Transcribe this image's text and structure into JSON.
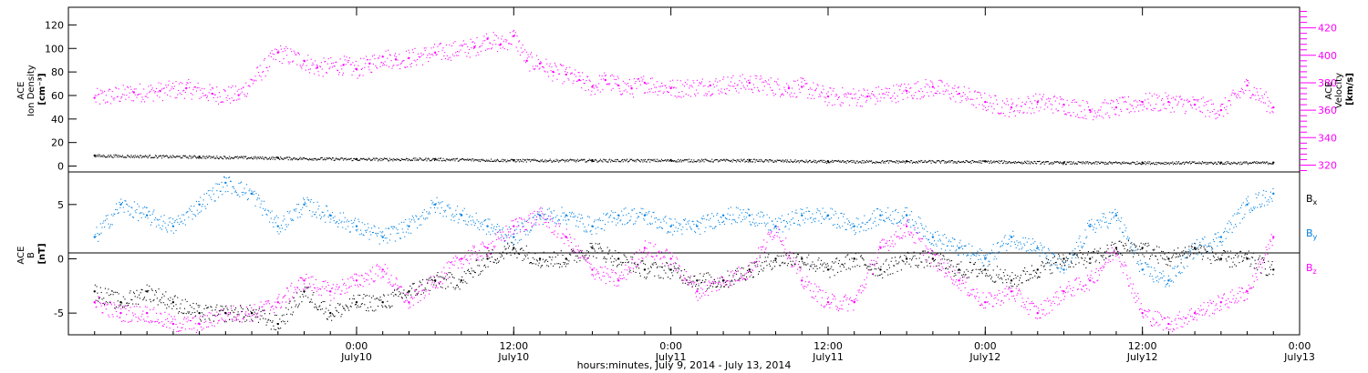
{
  "chart_data": [
    {
      "type": "scatter",
      "panel": "top",
      "left_axis": {
        "label_lines": [
          "ACE",
          "Ion Density",
          "[cm⁻³]"
        ],
        "ticks": [
          0,
          20,
          40,
          60,
          80,
          100,
          120
        ],
        "ylim": [
          -5,
          135
        ]
      },
      "right_axis": {
        "label_lines": [
          "ACE",
          "Velocity",
          "[km/s]"
        ],
        "ticks": [
          320,
          340,
          360,
          380,
          400,
          420
        ],
        "ylim": [
          315,
          435
        ],
        "color": "#ff00ff"
      },
      "series": [
        {
          "axis": "left",
          "color": "#000000",
          "x": [
            -20,
            -12,
            -6,
            0,
            6,
            12,
            18,
            24,
            30,
            36,
            42,
            48,
            54,
            60,
            66,
            70
          ],
          "y": [
            9,
            8,
            7,
            6,
            6,
            5,
            5,
            5,
            5,
            4,
            4,
            4,
            3,
            3,
            3,
            3
          ]
        },
        {
          "axis": "right",
          "color": "#ff00ff",
          "x": [
            -20,
            -17,
            -15,
            -13,
            -11,
            -9,
            -6,
            -4,
            -3,
            -1,
            0,
            1,
            2,
            3,
            4,
            6,
            9,
            10,
            11,
            12,
            13,
            14,
            15,
            16,
            17,
            18,
            19,
            20,
            21,
            22,
            24,
            27,
            30,
            33,
            34,
            36,
            39,
            42,
            44,
            46,
            48,
            50,
            52,
            54,
            56,
            58,
            60,
            62,
            64,
            66,
            68,
            70
          ],
          "y": [
            369,
            373,
            374,
            376,
            372,
            371,
            402,
            396,
            391,
            393,
            390,
            394,
            399,
            397,
            398,
            402,
            406,
            412,
            408,
            414,
            396,
            394,
            388,
            386,
            382,
            377,
            382,
            378,
            376,
            380,
            376,
            378,
            380,
            376,
            377,
            370,
            370,
            374,
            377,
            372,
            366,
            362,
            366,
            364,
            360,
            362,
            366,
            366,
            364,
            360,
            378,
            362
          ]
        }
      ]
    },
    {
      "type": "scatter",
      "panel": "bottom",
      "left_axis": {
        "label_lines": [
          "ACE",
          "B",
          "[nT]"
        ],
        "ticks": [
          -5,
          0,
          5
        ],
        "ylim": [
          -7,
          8
        ]
      },
      "legend": [
        "Bx",
        "By",
        "Bz"
      ],
      "series": [
        {
          "name": "Bx",
          "color": "#000000",
          "x": [
            -20,
            -18,
            -16,
            -14,
            -12,
            -10,
            -8,
            -6,
            -4,
            -2,
            0,
            2,
            4,
            6,
            8,
            10,
            12,
            14,
            16,
            18,
            20,
            22,
            24,
            26,
            28,
            30,
            32,
            34,
            36,
            38,
            40,
            42,
            44,
            46,
            48,
            50,
            52,
            54,
            56,
            58,
            60,
            62,
            64,
            66,
            68,
            70
          ],
          "y": [
            -3,
            -4,
            -3,
            -4,
            -5,
            -5,
            -5,
            -6,
            -3,
            -5,
            -4,
            -4,
            -3,
            -2,
            -2,
            0,
            1,
            0,
            0,
            1,
            0,
            -1,
            -1,
            -2,
            -2,
            -1,
            0,
            0,
            -1,
            0,
            -1,
            0,
            0,
            -1,
            -1,
            -2,
            -1,
            0,
            0,
            1,
            1,
            0,
            1,
            0,
            0,
            -1
          ]
        },
        {
          "name": "By",
          "color": "#0080e0",
          "x": [
            -20,
            -18,
            -16,
            -14,
            -12,
            -10,
            -8,
            -6,
            -4,
            -2,
            0,
            2,
            4,
            6,
            8,
            10,
            12,
            14,
            16,
            18,
            20,
            22,
            24,
            26,
            28,
            30,
            32,
            34,
            36,
            38,
            40,
            42,
            44,
            46,
            48,
            50,
            52,
            54,
            56,
            58,
            60,
            62,
            64,
            66,
            68,
            70
          ],
          "y": [
            2,
            5,
            4,
            3,
            5,
            7,
            6,
            3,
            5,
            4,
            3,
            2,
            3,
            5,
            4,
            3,
            2,
            4,
            4,
            3,
            4,
            4,
            3,
            3,
            4,
            4,
            3,
            4,
            4,
            3,
            4,
            4,
            2,
            1,
            0,
            2,
            1,
            -1,
            3,
            4,
            -1,
            -2,
            1,
            2,
            5,
            6
          ]
        },
        {
          "name": "Bz",
          "color": "#ff00ff",
          "x": [
            -20,
            -18,
            -16,
            -14,
            -12,
            -10,
            -8,
            -6,
            -4,
            -2,
            0,
            2,
            4,
            6,
            8,
            10,
            12,
            14,
            16,
            18,
            20,
            22,
            24,
            26,
            28,
            30,
            32,
            34,
            36,
            38,
            40,
            42,
            44,
            46,
            48,
            50,
            52,
            54,
            56,
            58,
            60,
            62,
            64,
            66,
            68,
            70
          ],
          "y": [
            -4,
            -5,
            -5,
            -6,
            -6,
            -5,
            -5,
            -4,
            -2,
            -3,
            -2,
            -1,
            -4,
            -2,
            0,
            1,
            3,
            4,
            2,
            -1,
            -2,
            1,
            0,
            -3,
            -2,
            -1,
            3,
            -2,
            -4,
            -4,
            1,
            3,
            0,
            -2,
            -4,
            -3,
            -5,
            -3,
            -2,
            1,
            -5,
            -6,
            -5,
            -4,
            -3,
            2
          ]
        }
      ]
    }
  ],
  "x_axis": {
    "xlim": [
      -22,
      72
    ],
    "ticks": [
      {
        "x": 0,
        "time": "0:00",
        "day": "July10"
      },
      {
        "x": 12,
        "time": "12:00",
        "day": "July10"
      },
      {
        "x": 24,
        "time": "0:00",
        "day": "July11"
      },
      {
        "x": 36,
        "time": "12:00",
        "day": "July11"
      },
      {
        "x": 48,
        "time": "0:00",
        "day": "July12"
      },
      {
        "x": 60,
        "time": "12:00",
        "day": "July12"
      },
      {
        "x": 72,
        "time": "0:00",
        "day": "July13"
      }
    ],
    "xlabel": "hours:minutes, July  9, 2014 - July 13, 2014"
  },
  "legend_labels": {
    "bx": {
      "base": "B",
      "sub": "x",
      "color": "#000000"
    },
    "by": {
      "base": "B",
      "sub": "y",
      "color": "#0080e0"
    },
    "bz": {
      "base": "B",
      "sub": "z",
      "color": "#ff00ff"
    }
  }
}
